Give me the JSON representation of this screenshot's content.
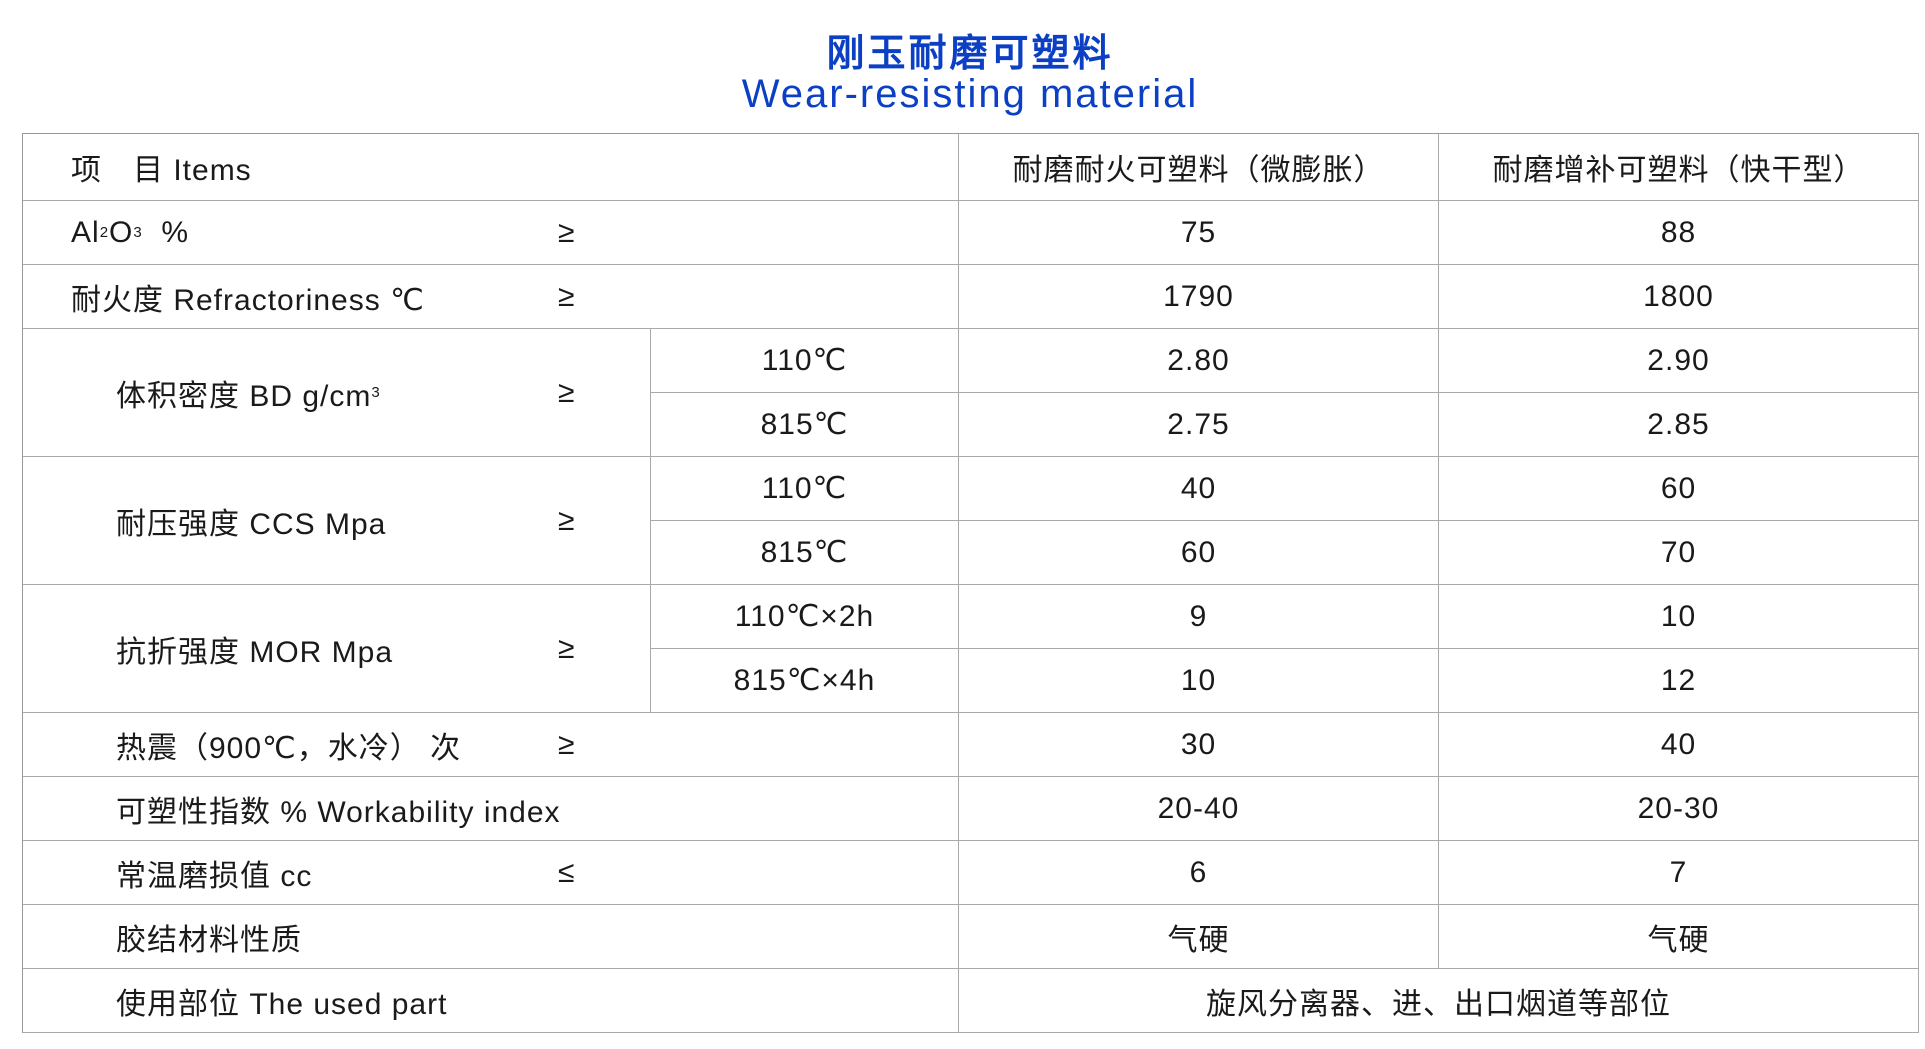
{
  "title_cn": "刚玉耐磨可塑料",
  "title_en": "Wear-resisting material",
  "header": {
    "items": "项　目 Items",
    "col1": "耐磨耐火可塑料（微膨胀）",
    "col2": "耐磨增补可塑料（快干型）"
  },
  "rows": [
    {
      "label_pre": "Al",
      "sub1": "2",
      "mid": "O",
      "sub2": "3",
      "label_post": "  %",
      "sign": "≥",
      "v1": "75",
      "v2": "88"
    },
    {
      "label": "耐火度 Refractoriness ℃",
      "sign": "≥",
      "v1": "1790",
      "v2": "1800"
    },
    {
      "label": "体积密度 BD g/cm",
      "sup": "3",
      "sign": "≥",
      "sub": [
        {
          "cond": "110℃",
          "v1": "2.80",
          "v2": "2.90"
        },
        {
          "cond": "815℃",
          "v1": "2.75",
          "v2": "2.85"
        }
      ]
    },
    {
      "label": "耐压强度 CCS Mpa",
      "sign": "≥",
      "sub": [
        {
          "cond": "110℃",
          "v1": "40",
          "v2": "60"
        },
        {
          "cond": "815℃",
          "v1": "60",
          "v2": "70"
        }
      ]
    },
    {
      "label": "抗折强度 MOR Mpa",
      "sign": "≥",
      "sub": [
        {
          "cond": "110℃×2h",
          "v1": "9",
          "v2": "10"
        },
        {
          "cond": "815℃×4h",
          "v1": "10",
          "v2": "12"
        }
      ]
    },
    {
      "label": "热震（900℃，水冷） 次",
      "sign": "≥",
      "v1": "30",
      "v2": "40"
    },
    {
      "label": "可塑性指数 % Workability index",
      "v1": "20-40",
      "v2": "20-30"
    },
    {
      "label": "常温磨损值 cc",
      "sign": "≤",
      "v1": "6",
      "v2": "7"
    },
    {
      "label": "胶结材料性质",
      "v1": "气硬",
      "v2": "气硬"
    },
    {
      "label": "使用部位 The used part",
      "v": "旋风分离器、进、出口烟道等部位"
    }
  ]
}
